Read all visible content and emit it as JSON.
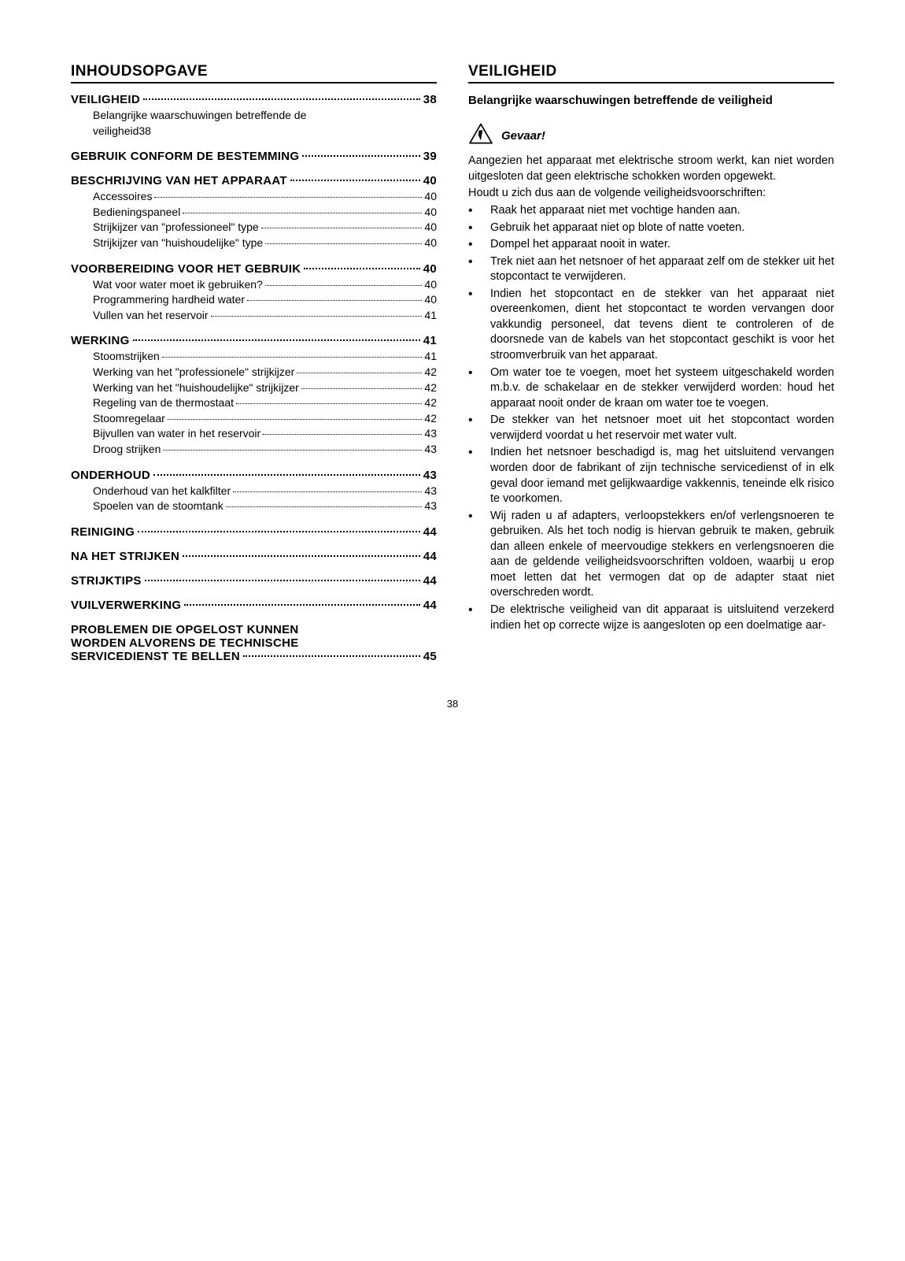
{
  "pageNumber": "38",
  "left": {
    "title": "INHOUDSOPGAVE",
    "groups": [
      {
        "main": {
          "label": "VEILIGHEID",
          "page": "38"
        },
        "subs": [
          {
            "multi": true,
            "line1": "Belangrijke waarschuwingen betreffende de",
            "line2": "veiligheid",
            "page": "38"
          }
        ]
      },
      {
        "main": {
          "label": "GEBRUIK CONFORM DE BESTEMMING",
          "page": "39"
        },
        "subs": []
      },
      {
        "main": {
          "label": "BESCHRIJVING VAN HET APPARAAT",
          "page": "40"
        },
        "subs": [
          {
            "label": "Accessoires",
            "page": "40"
          },
          {
            "label": "Bedieningspaneel",
            "page": "40"
          },
          {
            "label": "Strijkijzer van \"professioneel\" type",
            "page": "40"
          },
          {
            "label": "Strijkijzer van \"huishoudelijke\" type",
            "page": "40"
          }
        ]
      },
      {
        "main": {
          "label": "VOORBEREIDING VOOR HET GEBRUIK",
          "page": "40"
        },
        "subs": [
          {
            "label": "Wat voor water moet ik gebruiken?",
            "page": "40"
          },
          {
            "label": "Programmering hardheid water",
            "page": "40"
          },
          {
            "label": "Vullen van het reservoir",
            "page": "41"
          }
        ]
      },
      {
        "main": {
          "label": "WERKING",
          "page": "41"
        },
        "subs": [
          {
            "label": "Stoomstrijken",
            "page": "41"
          },
          {
            "label": "Werking van het \"professionele\" strijkijzer",
            "page": "42"
          },
          {
            "label": "Werking van het \"huishoudelijke\" strijkijzer",
            "page": "42"
          },
          {
            "label": "Regeling van de thermostaat",
            "page": "42"
          },
          {
            "label": "Stoomregelaar",
            "page": "42"
          },
          {
            "label": "Bijvullen van water in het reservoir",
            "page": "43"
          },
          {
            "label": "Droog strijken",
            "page": "43"
          }
        ]
      },
      {
        "main": {
          "label": "ONDERHOUD",
          "page": "43"
        },
        "subs": [
          {
            "label": "Onderhoud van het kalkfilter",
            "page": "43"
          },
          {
            "label": "Spoelen van de stoomtank",
            "page": "43"
          }
        ]
      },
      {
        "main": {
          "label": "REINIGING",
          "page": "44"
        },
        "subs": []
      },
      {
        "main": {
          "label": "NA HET STRIJKEN",
          "page": "44"
        },
        "subs": []
      },
      {
        "main": {
          "label": "STRIJKTIPS",
          "page": "44"
        },
        "subs": []
      },
      {
        "main": {
          "label": "VUILVERWERKING",
          "page": "44"
        },
        "subs": []
      },
      {
        "main": {
          "label": "PROBLEMEN DIE OPGELOST KUNNEN WORDEN ALVORENS DE TECHNISCHE SERVICEDIENST TE BELLEN",
          "page": "45",
          "multiMain": true
        },
        "subs": []
      }
    ]
  },
  "right": {
    "title": "VEILIGHEID",
    "subtitle": "Belangrijke waarschuwingen betreffende de veiligheid",
    "dangerLabel": "Gevaar!",
    "intro1": "Aangezien het apparaat met elektrische stroom werkt, kan niet worden uitgesloten dat geen elektrische schokken worden opgewekt.",
    "intro2": "Houdt u zich dus aan de volgende veiligheidsvoorschriften:",
    "bullets": [
      "Raak het apparaat niet met vochtige handen aan.",
      "Gebruik het apparaat niet op blote of natte voeten.",
      "Dompel het apparaat nooit in water.",
      "Trek niet aan het netsnoer of het apparaat zelf om de stekker uit het stopcontact te verwijderen.",
      "Indien het stopcontact en de stekker van het apparaat niet overeenkomen, dient het stopcontact te worden vervangen door vakkundig personeel, dat tevens dient te controleren of de doorsnede van de kabels van het stopcontact geschikt is voor het stroomverbruik van het apparaat.",
      "Om water toe te voegen, moet het systeem uitgeschakeld worden m.b.v. de schakelaar en de stekker verwijderd worden: houd het apparaat nooit onder de kraan om water toe te voegen.",
      "De stekker van het netsnoer moet uit het stopcontact worden verwijderd voordat u het reservoir met water vult.",
      "Indien het netsnoer beschadigd is, mag het uitsluitend vervangen worden door de fabrikant of zijn technische servicedienst of in elk geval door iemand met gelijkwaardige vakkennis, teneinde elk risico te voorkomen.",
      "Wij raden u af adapters, verloopstekkers en/of verlengsnoeren te gebruiken. Als het toch nodig is hiervan gebruik te maken, gebruik dan alleen enkele of meervoudige stekkers en verlengsnoeren die aan de geldende veiligheidsvoorschriften voldoen, waarbij u erop moet letten dat het vermogen dat op de adapter staat niet overschreden wordt.",
      "De elektrische veiligheid van dit apparaat is uitsluitend verzekerd indien het op correcte wijze is aangesloten op een doelmatige aar-"
    ]
  },
  "colors": {
    "text": "#000000",
    "background": "#ffffff"
  },
  "typography": {
    "bodyFontSize": 14.5,
    "titleFontSize": 19,
    "fontFamily": "Arial, Helvetica, sans-serif"
  }
}
